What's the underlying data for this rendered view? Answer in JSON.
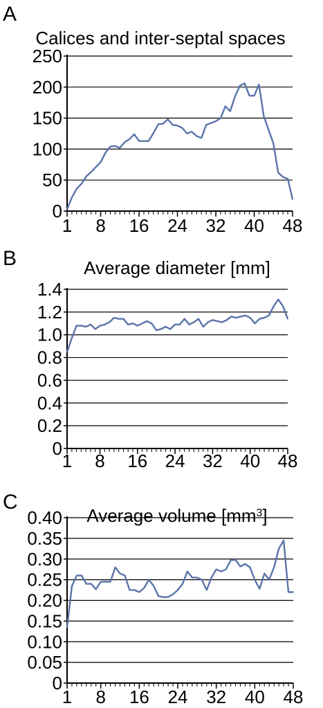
{
  "chart_data": [
    {
      "panel": "A",
      "type": "line",
      "title": "Calices and inter-septal spaces",
      "title_sup": "",
      "xlabel": "",
      "ylabel": "",
      "line_color": "#5a73a8",
      "xlim": [
        1,
        48
      ],
      "ylim": [
        0,
        250
      ],
      "yticks": [
        "0",
        "50",
        "100",
        "150",
        "200",
        "250"
      ],
      "ytick_values": [
        0,
        50,
        100,
        150,
        200,
        250
      ],
      "xticks": [
        "1",
        "8",
        "16",
        "24",
        "32",
        "40",
        "48"
      ],
      "xtick_values": [
        1,
        8,
        16,
        24,
        32,
        40,
        48
      ],
      "grid": true,
      "series": [
        {
          "x": [
            1,
            2,
            3,
            4,
            5,
            6,
            7,
            8,
            9,
            10,
            11,
            12,
            13,
            14,
            15,
            16,
            17,
            18,
            19,
            20,
            21,
            22,
            23,
            24,
            25,
            26,
            27,
            28,
            29,
            30,
            31,
            32,
            33,
            34,
            35,
            36,
            37,
            38,
            39,
            40,
            41,
            42,
            43,
            44,
            45,
            46,
            47,
            48
          ],
          "y": [
            3,
            22,
            36,
            44,
            56,
            63,
            71,
            79,
            94,
            104,
            105,
            102,
            111,
            116,
            124,
            113,
            113,
            113,
            126,
            140,
            141,
            148,
            139,
            138,
            134,
            125,
            128,
            121,
            118,
            139,
            142,
            145,
            150,
            169,
            161,
            185,
            202,
            206,
            186,
            186,
            204,
            153,
            131,
            109,
            62,
            55,
            52,
            19
          ]
        }
      ]
    },
    {
      "panel": "B",
      "type": "line",
      "title": "Average diameter [mm]",
      "title_sup": "",
      "xlabel": "",
      "ylabel": "",
      "line_color": "#5a73a8",
      "xlim": [
        1,
        48
      ],
      "ylim": [
        0,
        1.4
      ],
      "yticks": [
        "0",
        "0.2",
        "0.4",
        "0.6",
        "0.8",
        "1.0",
        "1.2",
        "1.4"
      ],
      "ytick_values": [
        0,
        0.2,
        0.4,
        0.6,
        0.8,
        1.0,
        1.2,
        1.4
      ],
      "xticks": [
        "1",
        "8",
        "16",
        "24",
        "32",
        "40",
        "48"
      ],
      "xtick_values": [
        1,
        8,
        16,
        24,
        32,
        40,
        48
      ],
      "grid": true,
      "series": [
        {
          "x": [
            1,
            2,
            3,
            4,
            5,
            6,
            7,
            8,
            9,
            10,
            11,
            12,
            13,
            14,
            15,
            16,
            17,
            18,
            19,
            20,
            21,
            22,
            23,
            24,
            25,
            26,
            27,
            28,
            29,
            30,
            31,
            32,
            33,
            34,
            35,
            36,
            37,
            38,
            39,
            40,
            41,
            42,
            43,
            44,
            45,
            46,
            47,
            48
          ],
          "y": [
            0.85,
            0.97,
            1.08,
            1.08,
            1.07,
            1.09,
            1.05,
            1.08,
            1.09,
            1.11,
            1.15,
            1.14,
            1.14,
            1.09,
            1.1,
            1.08,
            1.1,
            1.12,
            1.1,
            1.04,
            1.05,
            1.07,
            1.05,
            1.09,
            1.09,
            1.14,
            1.09,
            1.11,
            1.14,
            1.07,
            1.11,
            1.13,
            1.12,
            1.11,
            1.13,
            1.16,
            1.15,
            1.16,
            1.17,
            1.15,
            1.1,
            1.14,
            1.15,
            1.17,
            1.25,
            1.31,
            1.25,
            1.14
          ]
        }
      ]
    },
    {
      "panel": "C",
      "type": "line",
      "title": "Average volume [mm",
      "title_sup": "3",
      "title_suffix": "]",
      "xlabel": "",
      "ylabel": "",
      "line_color": "#5a73a8",
      "xlim": [
        1,
        48
      ],
      "ylim": [
        0,
        0.4
      ],
      "yticks": [
        "0",
        "0.05",
        "0.10",
        "0.15",
        "0.20",
        "0.25",
        "0.30",
        "0.35",
        "0.40"
      ],
      "ytick_values": [
        0,
        0.05,
        0.1,
        0.15,
        0.2,
        0.25,
        0.3,
        0.35,
        0.4
      ],
      "xticks": [
        "1",
        "8",
        "16",
        "24",
        "32",
        "40",
        "48"
      ],
      "xtick_values": [
        1,
        8,
        16,
        24,
        32,
        40,
        48
      ],
      "grid": true,
      "series": [
        {
          "x": [
            1,
            2,
            3,
            4,
            5,
            6,
            7,
            8,
            9,
            10,
            11,
            12,
            13,
            14,
            15,
            16,
            17,
            18,
            19,
            20,
            21,
            22,
            23,
            24,
            25,
            26,
            27,
            28,
            29,
            30,
            31,
            32,
            33,
            34,
            35,
            36,
            37,
            38,
            39,
            40,
            41,
            42,
            43,
            44,
            45,
            46,
            47,
            48
          ],
          "y": [
            0.135,
            0.235,
            0.26,
            0.26,
            0.24,
            0.24,
            0.227,
            0.245,
            0.245,
            0.245,
            0.28,
            0.265,
            0.26,
            0.225,
            0.225,
            0.22,
            0.23,
            0.25,
            0.235,
            0.21,
            0.208,
            0.208,
            0.215,
            0.225,
            0.24,
            0.27,
            0.255,
            0.255,
            0.25,
            0.225,
            0.255,
            0.275,
            0.27,
            0.275,
            0.297,
            0.298,
            0.282,
            0.288,
            0.28,
            0.25,
            0.228,
            0.265,
            0.25,
            0.28,
            0.325,
            0.345,
            0.22,
            0.22
          ]
        }
      ]
    }
  ],
  "panel_labels": [
    "A",
    "B",
    "C"
  ]
}
